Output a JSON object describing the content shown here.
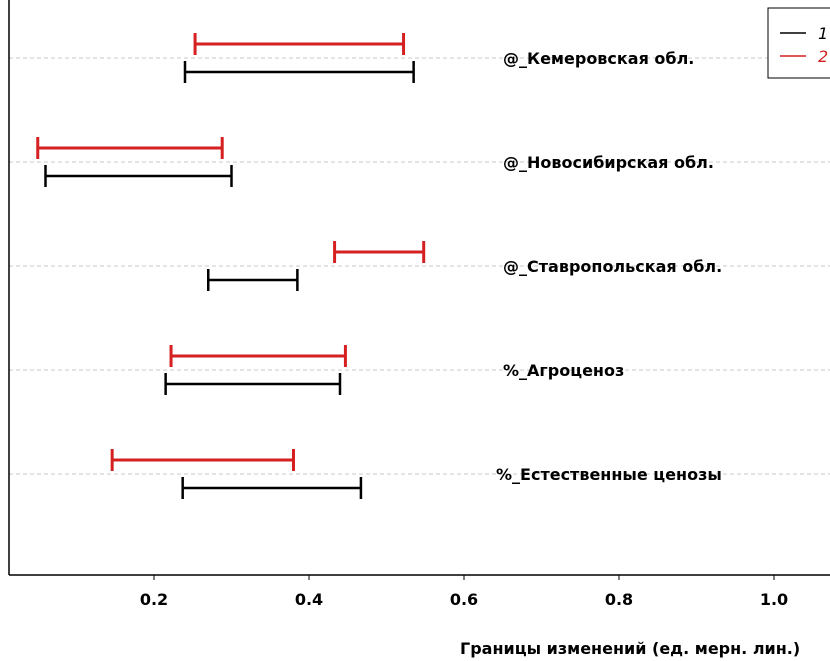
{
  "chart_data": {
    "type": "errorbar-interval",
    "xlabel": "Границы изменений (ед. мерн. лин.)",
    "xlim": [
      0.0,
      1.03
    ],
    "xticks": [
      0.2,
      0.4,
      0.6,
      0.8,
      1.0
    ],
    "xtick_labels": [
      "0.2",
      "0.4",
      "0.6",
      "0.8",
      "1.0"
    ],
    "categories": [
      "@_Кемеровская обл.",
      "@_Новосибирская обл.",
      "@_Ставропольская обл.",
      "%_Агроценоз",
      "%_Естественные ценозы"
    ],
    "series": [
      {
        "name": "1",
        "color": "#000000",
        "intervals": [
          [
            0.24,
            0.535
          ],
          [
            0.06,
            0.3
          ],
          [
            0.27,
            0.385
          ],
          [
            0.215,
            0.44
          ],
          [
            0.237,
            0.467
          ]
        ]
      },
      {
        "name": "2",
        "color": "#d42020",
        "intervals": [
          [
            0.253,
            0.522
          ],
          [
            0.05,
            0.288
          ],
          [
            0.433,
            0.548
          ],
          [
            0.222,
            0.447
          ],
          [
            0.146,
            0.38
          ]
        ]
      }
    ],
    "grid": "horizontal-dashed-at-categories",
    "legend_position": "top-right"
  }
}
